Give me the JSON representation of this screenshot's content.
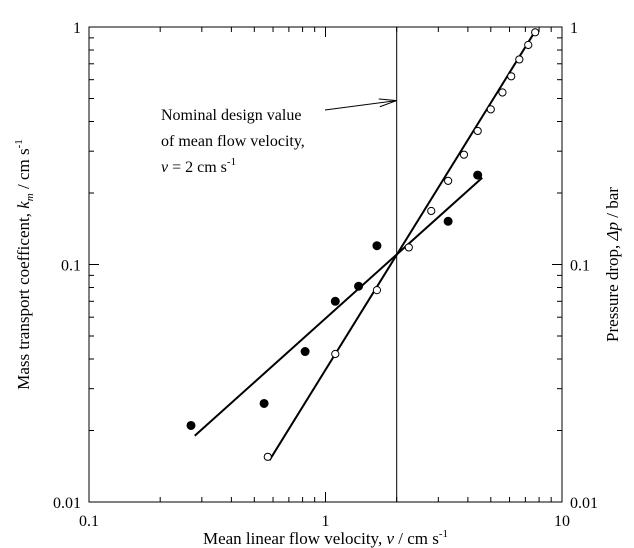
{
  "chart_data": {
    "type": "scatter",
    "x_scale": "log",
    "y_scale": "log",
    "y2_scale": "log",
    "xlim": [
      0.1,
      10
    ],
    "ylim": [
      0.01,
      1
    ],
    "y2lim": [
      0.01,
      1
    ],
    "grid": false,
    "x_ticks": [
      {
        "value": 0.1,
        "label": "0.1"
      },
      {
        "value": 1,
        "label": "1"
      },
      {
        "value": 10,
        "label": "10"
      }
    ],
    "y_ticks": [
      {
        "value": 0.01,
        "label": "0.01"
      },
      {
        "value": 0.1,
        "label": "0.1"
      },
      {
        "value": 1,
        "label": "1"
      }
    ],
    "y2_ticks": [
      {
        "value": 0.01,
        "label": "0.01"
      },
      {
        "value": 0.1,
        "label": "0.1"
      },
      {
        "value": 1,
        "label": "1"
      }
    ],
    "xlabel": {
      "main": "Mean linear flow velocity, ",
      "var": "v",
      "unit": " / cm s",
      "sup": "-1"
    },
    "ylabel": {
      "main": "Mass transport coefficent, ",
      "var": "k",
      "sub": "m",
      "unit": " / cm s",
      "sup": "-1"
    },
    "y2label": {
      "main": "Pressure drop, ",
      "var": "Δp",
      "unit": " / bar"
    },
    "series": [
      {
        "axis": "left",
        "marker": "filled-circle",
        "x": [
          0.27,
          0.55,
          0.82,
          1.1,
          1.38,
          1.65,
          3.3,
          4.4
        ],
        "y": [
          0.021,
          0.026,
          0.043,
          0.07,
          0.081,
          0.12,
          0.152,
          0.238
        ],
        "fit": {
          "x": [
            0.28,
            4.6
          ],
          "y": [
            0.019,
            0.232
          ]
        }
      },
      {
        "axis": "right",
        "marker": "open-circle",
        "x": [
          0.57,
          1.1,
          1.65,
          2.25,
          2.8,
          3.3,
          3.85,
          4.4,
          5.0,
          5.6,
          6.1,
          6.6,
          7.2,
          7.7
        ],
        "y": [
          0.0155,
          0.042,
          0.078,
          0.118,
          0.168,
          0.225,
          0.29,
          0.365,
          0.45,
          0.53,
          0.62,
          0.73,
          0.84,
          0.95
        ],
        "fit": {
          "x": [
            0.58,
            7.8
          ],
          "y": [
            0.015,
            0.98
          ]
        }
      }
    ],
    "reference_line": {
      "x": 2
    },
    "annotation": {
      "lines": [
        "Nominal design value",
        "of mean flow velocity,"
      ],
      "eq": {
        "var": "v",
        "text": " = 2 cm s",
        "sup": "-1"
      },
      "arrow_to": {
        "x": 2,
        "y": 0.49
      }
    }
  }
}
